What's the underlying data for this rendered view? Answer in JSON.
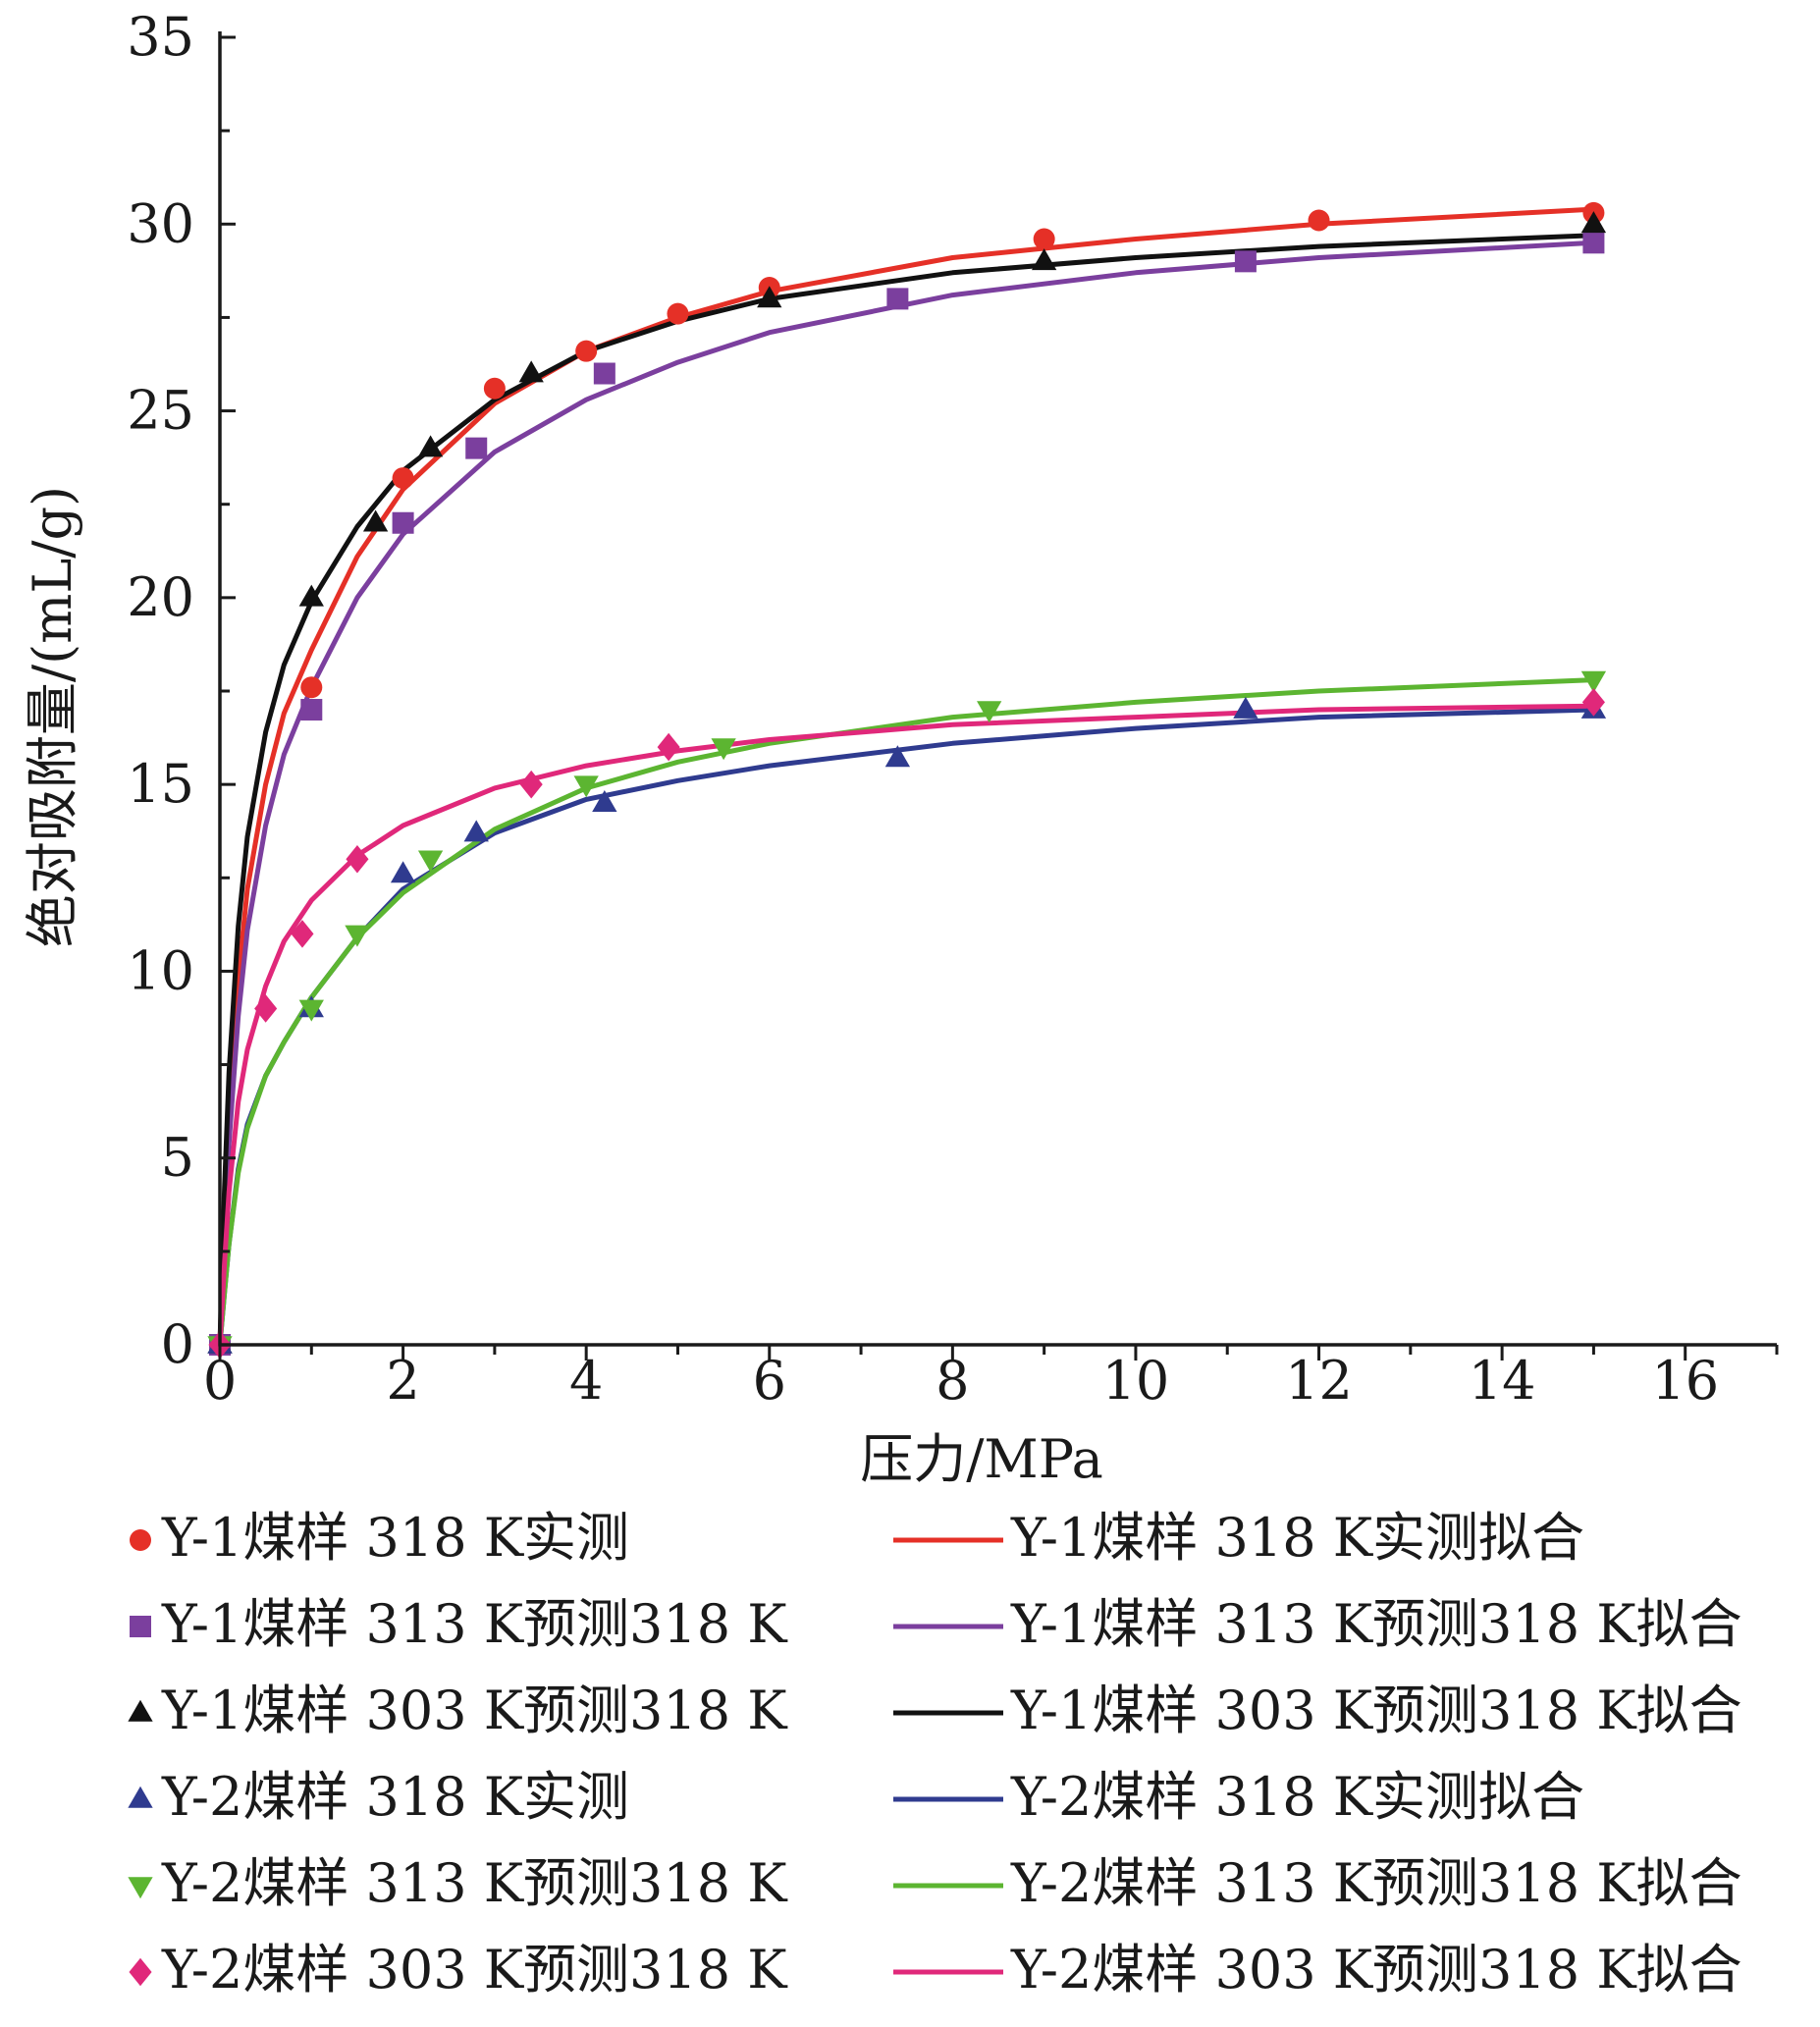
{
  "chart_data": {
    "type": "scatter",
    "xlabel": "压力/MPa",
    "ylabel": "绝对吸附量/(mL/g)",
    "xlim": [
      0,
      17
    ],
    "ylim": [
      0,
      35
    ],
    "xticks": [
      "0",
      "2",
      "4",
      "6",
      "8",
      "10",
      "12",
      "14",
      "16"
    ],
    "yticks": [
      "0",
      "5",
      "10",
      "15",
      "20",
      "25",
      "30",
      "35"
    ],
    "grid": false,
    "legend_position": "bottom",
    "series": [
      {
        "name": "Y-1煤样 318 K实测",
        "kind": "points",
        "marker": "circle",
        "color": "#e53027",
        "points": [
          [
            0,
            0
          ],
          [
            1,
            17.6
          ],
          [
            2,
            23.2
          ],
          [
            3,
            25.6
          ],
          [
            4,
            26.6
          ],
          [
            5,
            27.6
          ],
          [
            6,
            28.3
          ],
          [
            9,
            29.6
          ],
          [
            12,
            30.1
          ],
          [
            15,
            30.3
          ]
        ]
      },
      {
        "name": "Y-1煤样 313 K预测318 K",
        "kind": "points",
        "marker": "square",
        "color": "#7b3f9e",
        "points": [
          [
            0,
            0
          ],
          [
            1,
            17
          ],
          [
            2,
            22
          ],
          [
            2.8,
            24
          ],
          [
            4.2,
            26
          ],
          [
            7.4,
            28
          ],
          [
            11.2,
            29
          ],
          [
            15,
            29.5
          ]
        ]
      },
      {
        "name": "Y-1煤样 303 K预测318 K",
        "kind": "points",
        "marker": "triangle-up",
        "color": "#111111",
        "points": [
          [
            0,
            0
          ],
          [
            1,
            20
          ],
          [
            1.7,
            22
          ],
          [
            2.3,
            24
          ],
          [
            3.4,
            26
          ],
          [
            6,
            28
          ],
          [
            9,
            29
          ],
          [
            15,
            30
          ]
        ]
      },
      {
        "name": "Y-2煤样 318 K实测",
        "kind": "points",
        "marker": "triangle-up",
        "color": "#2f3b8f",
        "points": [
          [
            0,
            0
          ],
          [
            1,
            9
          ],
          [
            2,
            12.6
          ],
          [
            2.8,
            13.7
          ],
          [
            4.2,
            14.5
          ],
          [
            7.4,
            15.7
          ],
          [
            11.2,
            17
          ],
          [
            15,
            17
          ]
        ]
      },
      {
        "name": "Y-2煤样 313 K预测318 K",
        "kind": "points",
        "marker": "triangle-down",
        "color": "#5cb531",
        "points": [
          [
            0,
            0
          ],
          [
            1,
            9
          ],
          [
            1.5,
            11
          ],
          [
            2.3,
            13
          ],
          [
            4,
            15
          ],
          [
            5.5,
            16
          ],
          [
            8.4,
            17
          ],
          [
            15,
            17.8
          ]
        ]
      },
      {
        "name": "Y-2煤样 303 K预测318 K",
        "kind": "points",
        "marker": "diamond",
        "color": "#e0287a",
        "points": [
          [
            0,
            0
          ],
          [
            0.5,
            9
          ],
          [
            0.9,
            11
          ],
          [
            1.5,
            13
          ],
          [
            3.4,
            15
          ],
          [
            4.9,
            16
          ],
          [
            15,
            17.2
          ]
        ]
      },
      {
        "name": "Y-1煤样 318 K实测拟合",
        "kind": "line",
        "color": "#e53027",
        "points": [
          [
            0,
            0
          ],
          [
            0.05,
            3.5
          ],
          [
            0.1,
            6.2
          ],
          [
            0.2,
            9.8
          ],
          [
            0.3,
            12.2
          ],
          [
            0.5,
            15
          ],
          [
            0.7,
            16.9
          ],
          [
            1,
            18.6
          ],
          [
            1.5,
            21.1
          ],
          [
            2,
            22.9
          ],
          [
            3,
            25.2
          ],
          [
            4,
            26.6
          ],
          [
            5,
            27.5
          ],
          [
            6,
            28.2
          ],
          [
            8,
            29.1
          ],
          [
            10,
            29.6
          ],
          [
            12,
            30
          ],
          [
            15,
            30.4
          ]
        ]
      },
      {
        "name": "Y-1煤样 313 K预测318 K拟合",
        "kind": "line",
        "color": "#7b3f9e",
        "points": [
          [
            0,
            0
          ],
          [
            0.05,
            3.0
          ],
          [
            0.1,
            5.4
          ],
          [
            0.2,
            8.8
          ],
          [
            0.3,
            11.1
          ],
          [
            0.5,
            13.9
          ],
          [
            0.7,
            15.8
          ],
          [
            1,
            17.6
          ],
          [
            1.5,
            20
          ],
          [
            2,
            21.7
          ],
          [
            3,
            23.9
          ],
          [
            4,
            25.3
          ],
          [
            5,
            26.3
          ],
          [
            6,
            27.1
          ],
          [
            8,
            28.1
          ],
          [
            10,
            28.7
          ],
          [
            12,
            29.1
          ],
          [
            15,
            29.5
          ]
        ]
      },
      {
        "name": "Y-1煤样 303 K预测318 K拟合",
        "kind": "line",
        "color": "#111111",
        "points": [
          [
            0,
            0
          ],
          [
            0.05,
            4.2
          ],
          [
            0.1,
            7.3
          ],
          [
            0.2,
            11.2
          ],
          [
            0.3,
            13.6
          ],
          [
            0.5,
            16.4
          ],
          [
            0.7,
            18.2
          ],
          [
            1,
            19.9
          ],
          [
            1.5,
            21.9
          ],
          [
            2,
            23.4
          ],
          [
            3,
            25.3
          ],
          [
            4,
            26.6
          ],
          [
            5,
            27.4
          ],
          [
            6,
            28
          ],
          [
            8,
            28.7
          ],
          [
            10,
            29.1
          ],
          [
            12,
            29.4
          ],
          [
            15,
            29.7
          ]
        ]
      },
      {
        "name": "Y-2煤样 318 K实测拟合",
        "kind": "line",
        "color": "#2f3b8f",
        "points": [
          [
            0,
            0
          ],
          [
            0.05,
            1.4
          ],
          [
            0.1,
            2.7
          ],
          [
            0.2,
            4.7
          ],
          [
            0.3,
            5.9
          ],
          [
            0.5,
            7.2
          ],
          [
            0.7,
            8.1
          ],
          [
            1,
            9.3
          ],
          [
            1.5,
            10.9
          ],
          [
            2,
            12.2
          ],
          [
            3,
            13.7
          ],
          [
            4,
            14.6
          ],
          [
            5,
            15.1
          ],
          [
            6,
            15.5
          ],
          [
            8,
            16.1
          ],
          [
            10,
            16.5
          ],
          [
            12,
            16.8
          ],
          [
            15,
            17
          ]
        ]
      },
      {
        "name": "Y-2煤样 313 K预测318 K拟合",
        "kind": "line",
        "color": "#5cb531",
        "points": [
          [
            0,
            0
          ],
          [
            0.05,
            1.4
          ],
          [
            0.1,
            2.7
          ],
          [
            0.2,
            4.6
          ],
          [
            0.3,
            5.8
          ],
          [
            0.5,
            7.2
          ],
          [
            0.7,
            8.1
          ],
          [
            1,
            9.3
          ],
          [
            1.5,
            10.9
          ],
          [
            2,
            12.1
          ],
          [
            3,
            13.8
          ],
          [
            4,
            14.9
          ],
          [
            5,
            15.6
          ],
          [
            6,
            16.1
          ],
          [
            8,
            16.8
          ],
          [
            10,
            17.2
          ],
          [
            12,
            17.5
          ],
          [
            15,
            17.8
          ]
        ]
      },
      {
        "name": "Y-2煤样 303 K预测318 K拟合",
        "kind": "line",
        "color": "#e0287a",
        "points": [
          [
            0,
            0
          ],
          [
            0.05,
            2.2
          ],
          [
            0.1,
            4.1
          ],
          [
            0.2,
            6.5
          ],
          [
            0.3,
            7.9
          ],
          [
            0.5,
            9.6
          ],
          [
            0.7,
            10.8
          ],
          [
            1,
            11.9
          ],
          [
            1.5,
            13.1
          ],
          [
            2,
            13.9
          ],
          [
            3,
            14.9
          ],
          [
            4,
            15.5
          ],
          [
            5,
            15.9
          ],
          [
            6,
            16.2
          ],
          [
            8,
            16.6
          ],
          [
            10,
            16.8
          ],
          [
            12,
            17
          ],
          [
            15,
            17.1
          ]
        ]
      }
    ]
  }
}
